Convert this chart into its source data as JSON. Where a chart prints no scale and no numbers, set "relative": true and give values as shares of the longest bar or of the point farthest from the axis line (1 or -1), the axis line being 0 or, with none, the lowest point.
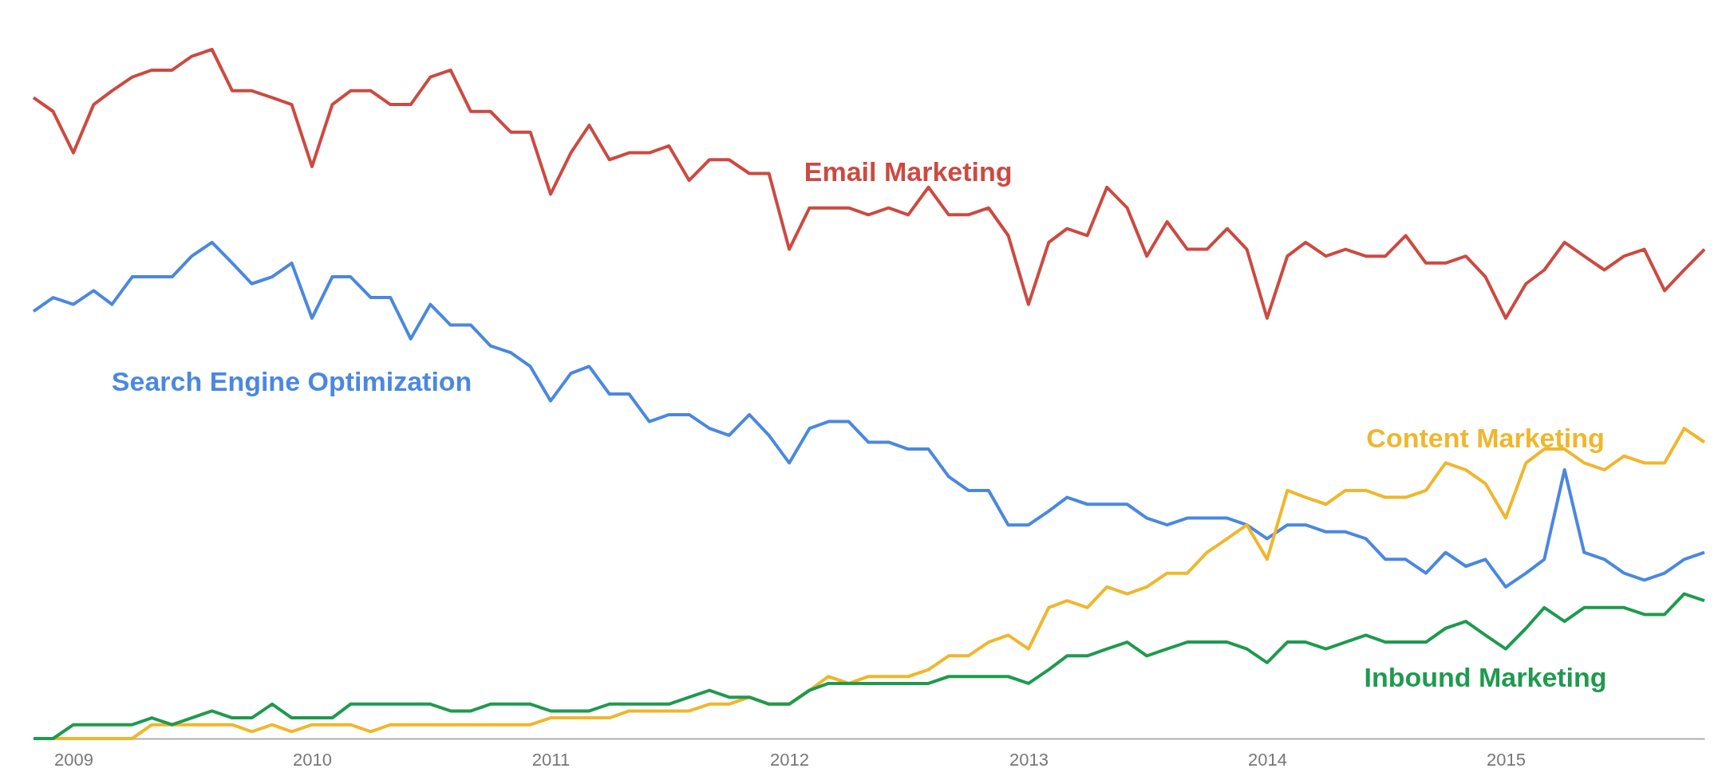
{
  "chart_data": {
    "type": "line",
    "relative": true,
    "legend": false,
    "marker": "none",
    "line_style": "solid",
    "x": [
      "2008-11",
      "2008-12",
      "2009-01",
      "2009-02",
      "2009-03",
      "2009-04",
      "2009-05",
      "2009-06",
      "2009-07",
      "2009-08",
      "2009-09",
      "2009-10",
      "2009-11",
      "2009-12",
      "2010-01",
      "2010-02",
      "2010-03",
      "2010-04",
      "2010-05",
      "2010-06",
      "2010-07",
      "2010-08",
      "2010-09",
      "2010-10",
      "2010-11",
      "2010-12",
      "2011-01",
      "2011-02",
      "2011-03",
      "2011-04",
      "2011-05",
      "2011-06",
      "2011-07",
      "2011-08",
      "2011-09",
      "2011-10",
      "2011-11",
      "2011-12",
      "2012-01",
      "2012-02",
      "2012-03",
      "2012-04",
      "2012-05",
      "2012-06",
      "2012-07",
      "2012-08",
      "2012-09",
      "2012-10",
      "2012-11",
      "2012-12",
      "2013-01",
      "2013-02",
      "2013-03",
      "2013-04",
      "2013-05",
      "2013-06",
      "2013-07",
      "2013-08",
      "2013-09",
      "2013-10",
      "2013-11",
      "2013-12",
      "2014-01",
      "2014-02",
      "2014-03",
      "2014-04",
      "2014-05",
      "2014-06",
      "2014-07",
      "2014-08",
      "2014-09",
      "2014-10",
      "2014-11",
      "2014-12",
      "2015-01",
      "2015-02",
      "2015-03",
      "2015-04",
      "2015-05",
      "2015-06",
      "2015-07",
      "2015-08",
      "2015-09",
      "2015-10",
      "2015-11"
    ],
    "xlim": [
      "2008-11",
      "2015-11"
    ],
    "xticks": [
      "2009",
      "2010",
      "2011",
      "2012",
      "2013",
      "2014",
      "2015"
    ],
    "series": [
      {
        "name": "Email Marketing",
        "color": "#cc4a41",
        "values": [
          0.93,
          0.91,
          0.85,
          0.92,
          0.94,
          0.96,
          0.97,
          0.97,
          0.99,
          1,
          0.94,
          0.94,
          0.93,
          0.92,
          0.83,
          0.92,
          0.94,
          0.94,
          0.92,
          0.92,
          0.96,
          0.97,
          0.91,
          0.91,
          0.88,
          0.88,
          0.79,
          0.85,
          0.89,
          0.84,
          0.85,
          0.85,
          0.86,
          0.81,
          0.84,
          0.84,
          0.82,
          0.82,
          0.71,
          0.77,
          0.77,
          0.77,
          0.76,
          0.77,
          0.76,
          0.8,
          0.76,
          0.76,
          0.77,
          0.73,
          0.63,
          0.72,
          0.74,
          0.73,
          0.8,
          0.77,
          0.7,
          0.75,
          0.71,
          0.71,
          0.74,
          0.71,
          0.61,
          0.7,
          0.72,
          0.7,
          0.71,
          0.7,
          0.7,
          0.73,
          0.69,
          0.69,
          0.7,
          0.67,
          0.61,
          0.66,
          0.68,
          0.72,
          0.7,
          0.68,
          0.7,
          0.71,
          0.65,
          0.68,
          0.71
        ]
      },
      {
        "name": "Search Engine Optimization",
        "color": "#4a88e0",
        "values": [
          0.62,
          0.64,
          0.63,
          0.65,
          0.63,
          0.67,
          0.67,
          0.67,
          0.7,
          0.72,
          0.69,
          0.66,
          0.67,
          0.69,
          0.61,
          0.67,
          0.67,
          0.64,
          0.64,
          0.58,
          0.63,
          0.6,
          0.6,
          0.57,
          0.56,
          0.54,
          0.49,
          0.53,
          0.54,
          0.5,
          0.5,
          0.46,
          0.47,
          0.47,
          0.45,
          0.44,
          0.47,
          0.44,
          0.4,
          0.45,
          0.46,
          0.46,
          0.43,
          0.43,
          0.42,
          0.42,
          0.38,
          0.36,
          0.36,
          0.31,
          0.31,
          0.33,
          0.35,
          0.34,
          0.34,
          0.34,
          0.32,
          0.31,
          0.32,
          0.32,
          0.32,
          0.31,
          0.29,
          0.31,
          0.31,
          0.3,
          0.3,
          0.29,
          0.26,
          0.26,
          0.24,
          0.27,
          0.25,
          0.26,
          0.22,
          0.24,
          0.26,
          0.39,
          0.27,
          0.26,
          0.24,
          0.23,
          0.24,
          0.26,
          0.27
        ]
      },
      {
        "name": "Content Marketing",
        "color": "#f0b62c",
        "values": [
          0,
          0,
          0,
          0,
          0,
          0,
          0.02,
          0.02,
          0.02,
          0.02,
          0.02,
          0.01,
          0.02,
          0.01,
          0.02,
          0.02,
          0.02,
          0.01,
          0.02,
          0.02,
          0.02,
          0.02,
          0.02,
          0.02,
          0.02,
          0.02,
          0.03,
          0.03,
          0.03,
          0.03,
          0.04,
          0.04,
          0.04,
          0.04,
          0.05,
          0.05,
          0.06,
          0.05,
          0.05,
          0.07,
          0.09,
          0.08,
          0.09,
          0.09,
          0.09,
          0.1,
          0.12,
          0.12,
          0.14,
          0.15,
          0.13,
          0.19,
          0.2,
          0.19,
          0.22,
          0.21,
          0.22,
          0.24,
          0.24,
          0.27,
          0.29,
          0.31,
          0.26,
          0.36,
          0.35,
          0.34,
          0.36,
          0.36,
          0.35,
          0.35,
          0.36,
          0.4,
          0.39,
          0.37,
          0.32,
          0.4,
          0.42,
          0.42,
          0.4,
          0.39,
          0.41,
          0.4,
          0.4,
          0.45,
          0.43
        ]
      },
      {
        "name": "Inbound Marketing",
        "color": "#1f9a4e",
        "values": [
          0,
          0,
          0.02,
          0.02,
          0.02,
          0.02,
          0.03,
          0.02,
          0.03,
          0.04,
          0.03,
          0.03,
          0.05,
          0.03,
          0.03,
          0.03,
          0.05,
          0.05,
          0.05,
          0.05,
          0.05,
          0.04,
          0.04,
          0.05,
          0.05,
          0.05,
          0.04,
          0.04,
          0.04,
          0.05,
          0.05,
          0.05,
          0.05,
          0.06,
          0.07,
          0.06,
          0.06,
          0.05,
          0.05,
          0.07,
          0.08,
          0.08,
          0.08,
          0.08,
          0.08,
          0.08,
          0.09,
          0.09,
          0.09,
          0.09,
          0.08,
          0.1,
          0.12,
          0.12,
          0.13,
          0.14,
          0.12,
          0.13,
          0.14,
          0.14,
          0.14,
          0.13,
          0.11,
          0.14,
          0.14,
          0.13,
          0.14,
          0.15,
          0.14,
          0.14,
          0.14,
          0.16,
          0.17,
          0.15,
          0.13,
          0.16,
          0.19,
          0.17,
          0.19,
          0.19,
          0.19,
          0.18,
          0.18,
          0.21,
          0.2
        ]
      }
    ]
  }
}
